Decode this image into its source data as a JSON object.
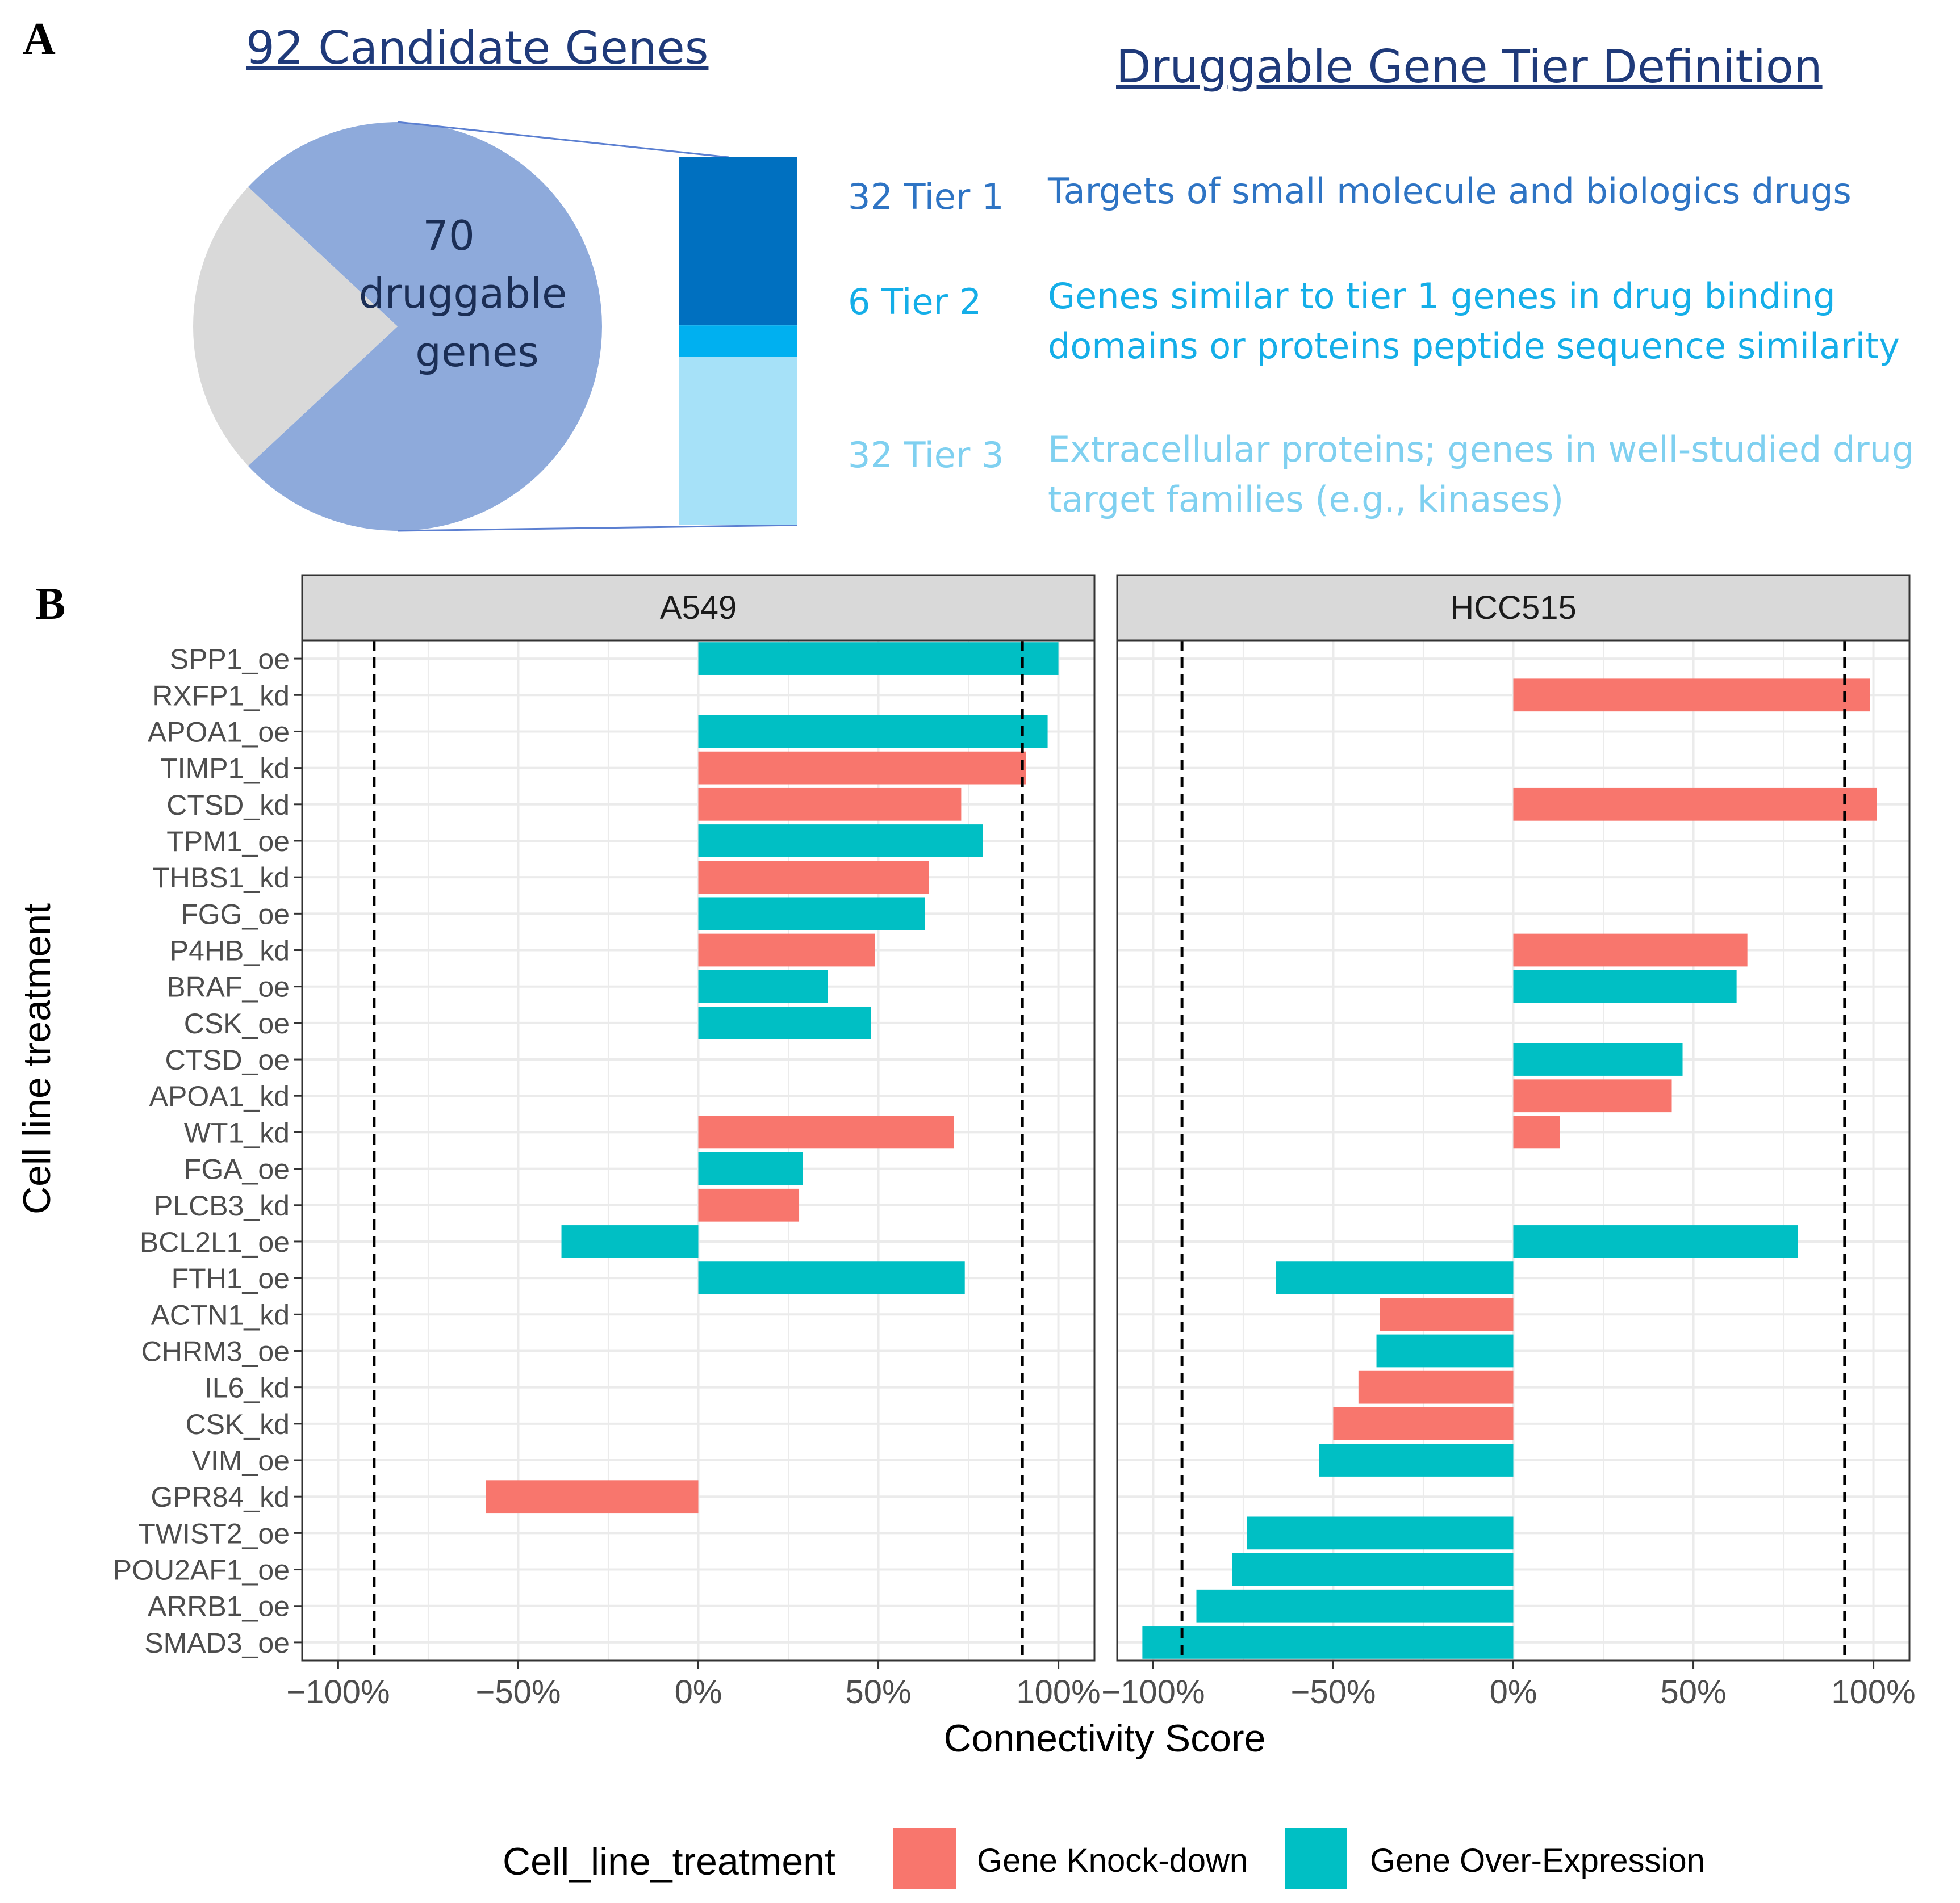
{
  "panel_a": {
    "letter": "A",
    "candidate_title": "92 Candidate Genes",
    "pie": {
      "total": 92,
      "druggable": 70,
      "center_lines": [
        "70",
        "druggable",
        "genes"
      ],
      "druggable_color": "#8eaadb",
      "other_color": "#d9d9d9"
    },
    "tier_title": "Druggable Gene Tier Definition",
    "tiers": [
      {
        "count_label": "32 Tier 1",
        "count": 32,
        "color": "#0070c0",
        "text_color": "#2e74c4",
        "lines": [
          "Targets of small molecule and biologics drugs"
        ]
      },
      {
        "count_label": "6   Tier 2",
        "count": 6,
        "color": "#00b0f0",
        "text_color": "#14aee8",
        "lines": [
          "Genes similar to tier 1 genes in drug binding",
          "domains or proteins peptide sequence similarity"
        ]
      },
      {
        "count_label": "32 Tier 3",
        "count": 32,
        "color": "#a6e1f8",
        "text_color": "#7fd0f0",
        "lines": [
          "Extracellular proteins; genes in well-studied drug",
          "target families (e.g., kinases)"
        ]
      }
    ]
  },
  "panel_b": {
    "letter": "B",
    "chart_data": {
      "type": "bar",
      "orientation": "horizontal",
      "xlabel": "Connectivity Score",
      "ylabel": "Cell line treatment",
      "xlim": [
        -1.1,
        1.1
      ],
      "x_ticks": [
        -1,
        -0.5,
        0,
        0.5,
        1
      ],
      "x_tick_labels": [
        "−100%",
        "−50%",
        "0%",
        "50%",
        "100%"
      ],
      "categories": [
        "SPP1_oe",
        "RXFP1_kd",
        "APOA1_oe",
        "TIMP1_kd",
        "CTSD_kd",
        "TPM1_oe",
        "THBS1_kd",
        "FGG_oe",
        "P4HB_kd",
        "BRAF_oe",
        "CSK_oe",
        "CTSD_oe",
        "APOA1_kd",
        "WT1_kd",
        "FGA_oe",
        "PLCB3_kd",
        "BCL2L1_oe",
        "FTH1_oe",
        "ACTN1_kd",
        "CHRM3_oe",
        "IL6_kd",
        "CSK_kd",
        "VIM_oe",
        "GPR84_kd",
        "TWIST2_oe",
        "POU2AF1_oe",
        "ARRB1_oe",
        "SMAD3_oe"
      ],
      "legend": {
        "title": "Cell_line_treatment",
        "entries": [
          {
            "key": "kd",
            "label": "Gene Knock-down",
            "color": "#f8766d"
          },
          {
            "key": "oe",
            "label": "Gene Over-Expression",
            "color": "#00bfc4"
          }
        ]
      },
      "facets": [
        {
          "name": "A549",
          "threshold_lines": [
            -0.9,
            0.9
          ],
          "values": [
            1.0,
            null,
            0.97,
            0.91,
            0.73,
            0.79,
            0.64,
            0.63,
            0.49,
            0.36,
            0.48,
            null,
            null,
            0.71,
            0.29,
            0.28,
            -0.38,
            0.74,
            null,
            null,
            null,
            null,
            null,
            -0.59,
            null,
            null,
            null,
            null
          ]
        },
        {
          "name": "HCC515",
          "threshold_lines": [
            -0.92,
            0.92
          ],
          "values": [
            null,
            0.99,
            null,
            null,
            1.01,
            null,
            null,
            null,
            0.65,
            0.62,
            null,
            0.47,
            0.44,
            0.13,
            null,
            null,
            0.79,
            -0.66,
            -0.37,
            -0.38,
            -0.43,
            -0.5,
            -0.54,
            null,
            -0.74,
            -0.78,
            -0.88,
            -1.03
          ]
        }
      ]
    }
  }
}
